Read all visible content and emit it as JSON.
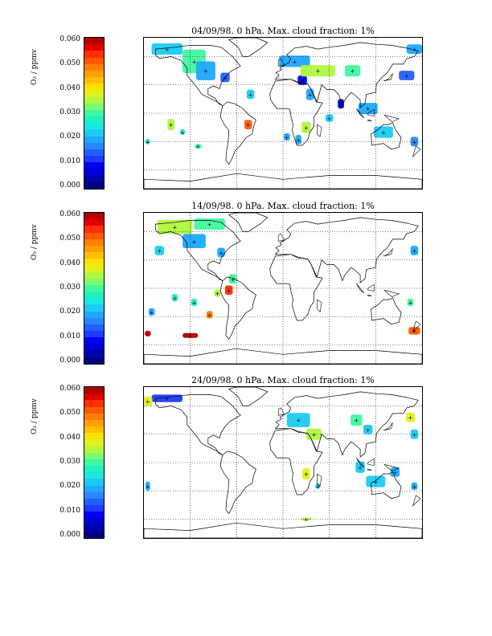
{
  "colorbar": {
    "label": "O₃ / ppmv",
    "ticks": [
      "0.060",
      "0.050",
      "0.040",
      "0.030",
      "0.020",
      "0.010",
      "0.000"
    ],
    "colors": [
      "#00007f",
      "#0000a8",
      "#0000d0",
      "#0000f8",
      "#1e3cff",
      "#2060ff",
      "#2a86ff",
      "#1fa8ff",
      "#1ccaf2",
      "#1ce8e0",
      "#20f0c0",
      "#40f8a0",
      "#7ff870",
      "#b0f840",
      "#e0f020",
      "#ffe000",
      "#ffc000",
      "#ffa000",
      "#ff8000",
      "#ff5a00",
      "#ff3000",
      "#e00000",
      "#b00000"
    ]
  },
  "panels": [
    {
      "title": "04/09/98. 0 hPa. Max. cloud fraction: 1%",
      "patches": [
        {
          "lon": -150,
          "lat": 68,
          "w": 40,
          "h": 12,
          "c": "#1ccaf2"
        },
        {
          "lon": -115,
          "lat": 55,
          "w": 30,
          "h": 25,
          "c": "#40f8a0"
        },
        {
          "lon": -100,
          "lat": 45,
          "w": 25,
          "h": 20,
          "c": "#1fa8ff"
        },
        {
          "lon": -75,
          "lat": 38,
          "w": 12,
          "h": 10,
          "c": "#2060ff"
        },
        {
          "lon": -42,
          "lat": 20,
          "w": 10,
          "h": 10,
          "c": "#1ccaf2"
        },
        {
          "lon": -45,
          "lat": -12,
          "w": 10,
          "h": 10,
          "c": "#ff5a00"
        },
        {
          "lon": -145,
          "lat": -12,
          "w": 9,
          "h": 12,
          "c": "#b0f840"
        },
        {
          "lon": -130,
          "lat": -20,
          "w": 7,
          "h": 6,
          "c": "#20f0c0"
        },
        {
          "lon": -110,
          "lat": -35,
          "w": 9,
          "h": 5,
          "c": "#40f8a0"
        },
        {
          "lon": 15,
          "lat": 55,
          "w": 40,
          "h": 12,
          "c": "#1fa8ff"
        },
        {
          "lon": 25,
          "lat": 35,
          "w": 12,
          "h": 10,
          "c": "#0000f8"
        },
        {
          "lon": 35,
          "lat": 20,
          "w": 10,
          "h": 12,
          "c": "#1fa8ff"
        },
        {
          "lon": 45,
          "lat": 45,
          "w": 45,
          "h": 12,
          "c": "#b0f840"
        },
        {
          "lon": 90,
          "lat": 45,
          "w": 20,
          "h": 12,
          "c": "#40f8a0"
        },
        {
          "lon": 75,
          "lat": 10,
          "w": 8,
          "h": 10,
          "c": "#0000d0"
        },
        {
          "lon": 60,
          "lat": -5,
          "w": 10,
          "h": 8,
          "c": "#1ccaf2"
        },
        {
          "lon": 30,
          "lat": -15,
          "w": 12,
          "h": 12,
          "c": "#b0f840"
        },
        {
          "lon": 20,
          "lat": -28,
          "w": 8,
          "h": 10,
          "c": "#1fa8ff"
        },
        {
          "lon": 5,
          "lat": -25,
          "w": 8,
          "h": 8,
          "c": "#1fa8ff"
        },
        {
          "lon": 110,
          "lat": 5,
          "w": 25,
          "h": 12,
          "c": "#1fa8ff"
        },
        {
          "lon": 130,
          "lat": -20,
          "w": 25,
          "h": 12,
          "c": "#1ccaf2"
        },
        {
          "lon": 160,
          "lat": 40,
          "w": 20,
          "h": 10,
          "c": "#2060ff"
        },
        {
          "lon": 170,
          "lat": -30,
          "w": 10,
          "h": 10,
          "c": "#2a86ff"
        },
        {
          "lon": 170,
          "lat": 68,
          "w": 20,
          "h": 10,
          "c": "#1fa8ff"
        },
        {
          "lon": -175,
          "lat": -30,
          "w": 6,
          "h": 6,
          "c": "#20f0c0"
        }
      ]
    },
    {
      "title": "14/09/98. 0 hPa. Max. cloud fraction: 1%",
      "patches": [
        {
          "lon": -140,
          "lat": 65,
          "w": 45,
          "h": 15,
          "c": "#b0f840"
        },
        {
          "lon": -95,
          "lat": 68,
          "w": 40,
          "h": 12,
          "c": "#40f8a0"
        },
        {
          "lon": -115,
          "lat": 50,
          "w": 30,
          "h": 15,
          "c": "#1fa8ff"
        },
        {
          "lon": -160,
          "lat": 40,
          "w": 12,
          "h": 10,
          "c": "#1ccaf2"
        },
        {
          "lon": -80,
          "lat": 38,
          "w": 10,
          "h": 10,
          "c": "#1fa8ff"
        },
        {
          "lon": -65,
          "lat": 10,
          "w": 10,
          "h": 10,
          "c": "#40f8a0"
        },
        {
          "lon": -70,
          "lat": -2,
          "w": 10,
          "h": 10,
          "c": "#ff3000"
        },
        {
          "lon": -85,
          "lat": -5,
          "w": 8,
          "h": 8,
          "c": "#b0f840"
        },
        {
          "lon": -140,
          "lat": -10,
          "w": 8,
          "h": 8,
          "c": "#20f0c0"
        },
        {
          "lon": -115,
          "lat": -15,
          "w": 8,
          "h": 8,
          "c": "#20f0c0"
        },
        {
          "lon": -95,
          "lat": -28,
          "w": 8,
          "h": 8,
          "c": "#ff8000"
        },
        {
          "lon": -170,
          "lat": -25,
          "w": 8,
          "h": 8,
          "c": "#1fa8ff"
        },
        {
          "lon": -175,
          "lat": -48,
          "w": 8,
          "h": 6,
          "c": "#e00000"
        },
        {
          "lon": -120,
          "lat": -50,
          "w": 20,
          "h": 5,
          "c": "#b00000"
        },
        {
          "lon": 170,
          "lat": -45,
          "w": 15,
          "h": 8,
          "c": "#ff5a00"
        },
        {
          "lon": 165,
          "lat": -15,
          "w": 8,
          "h": 8,
          "c": "#40f8a0"
        },
        {
          "lon": 170,
          "lat": 40,
          "w": 10,
          "h": 10,
          "c": "#1fa8ff"
        }
      ]
    },
    {
      "title": "24/09/98. 0 hPa. Max. cloud fraction: 1%",
      "patches": [
        {
          "lon": -150,
          "lat": 68,
          "w": 40,
          "h": 8,
          "c": "#1e3cff"
        },
        {
          "lon": -175,
          "lat": 65,
          "w": 12,
          "h": 10,
          "c": "#e0f020"
        },
        {
          "lon": 20,
          "lat": 45,
          "w": 30,
          "h": 15,
          "c": "#1ccaf2"
        },
        {
          "lon": 40,
          "lat": 30,
          "w": 20,
          "h": 12,
          "c": "#b0f840"
        },
        {
          "lon": 95,
          "lat": 45,
          "w": 15,
          "h": 12,
          "c": "#40f8a0"
        },
        {
          "lon": 110,
          "lat": 35,
          "w": 12,
          "h": 10,
          "c": "#1ccaf2"
        },
        {
          "lon": 165,
          "lat": 48,
          "w": 12,
          "h": 10,
          "c": "#e0f020"
        },
        {
          "lon": 170,
          "lat": 30,
          "w": 10,
          "h": 10,
          "c": "#1ccaf2"
        },
        {
          "lon": 30,
          "lat": -12,
          "w": 10,
          "h": 12,
          "c": "#e0f020"
        },
        {
          "lon": 45,
          "lat": -25,
          "w": 6,
          "h": 6,
          "c": "#1ccaf2"
        },
        {
          "lon": 100,
          "lat": -5,
          "w": 12,
          "h": 12,
          "c": "#1ccaf2"
        },
        {
          "lon": 120,
          "lat": -20,
          "w": 25,
          "h": 12,
          "c": "#1ccaf2"
        },
        {
          "lon": 145,
          "lat": -10,
          "w": 12,
          "h": 10,
          "c": "#1fa8ff"
        },
        {
          "lon": 170,
          "lat": -25,
          "w": 8,
          "h": 8,
          "c": "#1fa8ff"
        },
        {
          "lon": -175,
          "lat": -25,
          "w": 6,
          "h": 10,
          "c": "#1fa8ff"
        },
        {
          "lon": 30,
          "lat": -60,
          "w": 14,
          "h": 3,
          "c": "#b0f840"
        }
      ]
    }
  ]
}
